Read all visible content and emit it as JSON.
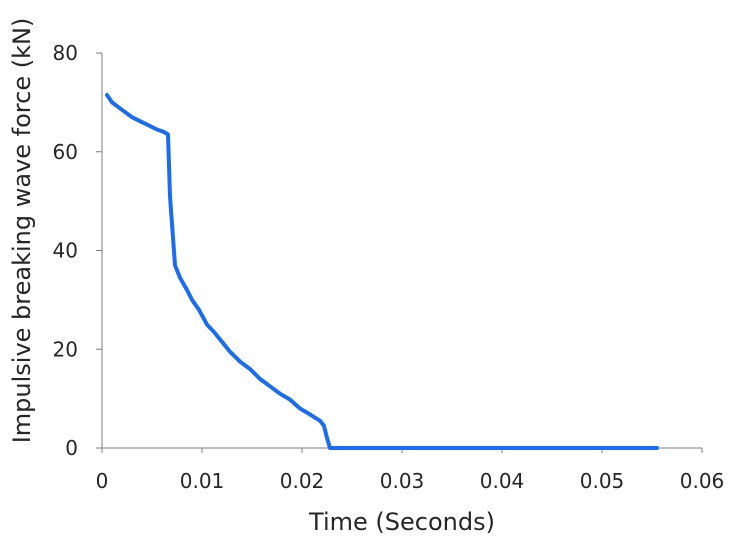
{
  "chart_data": {
    "type": "line",
    "title": "",
    "xlabel": "Time (Seconds)",
    "ylabel": "Impulsive breaking wave force (kN)",
    "xlim": [
      0,
      0.06
    ],
    "ylim": [
      0,
      80
    ],
    "x_ticks": [
      "0",
      "0.01",
      "0.02",
      "0.03",
      "0.04",
      "0.05",
      "0.06"
    ],
    "y_ticks": [
      "0",
      "20",
      "40",
      "60",
      "80"
    ],
    "grid": false,
    "legend": "none",
    "series": [
      {
        "color": "#1a6cf0",
        "x": [
          0.0005,
          0.001,
          0.002,
          0.003,
          0.0035,
          0.0045,
          0.0055,
          0.0062,
          0.0066,
          0.0068,
          0.0073,
          0.0078,
          0.0085,
          0.009,
          0.0097,
          0.0105,
          0.0112,
          0.012,
          0.0128,
          0.0138,
          0.0148,
          0.0158,
          0.0168,
          0.0178,
          0.0188,
          0.0198,
          0.0208,
          0.0218,
          0.0222,
          0.0225,
          0.0228,
          0.03,
          0.04,
          0.05,
          0.0555
        ],
        "y": [
          71.5,
          70,
          68.5,
          67,
          66.5,
          65.5,
          64.5,
          64,
          63.5,
          51,
          37,
          34.5,
          32,
          30,
          28,
          25,
          23.5,
          21.5,
          19.5,
          17.5,
          16,
          14,
          12.5,
          11,
          9.8,
          8,
          6.8,
          5.5,
          4.5,
          2,
          0,
          0,
          0,
          0,
          0
        ]
      }
    ]
  }
}
